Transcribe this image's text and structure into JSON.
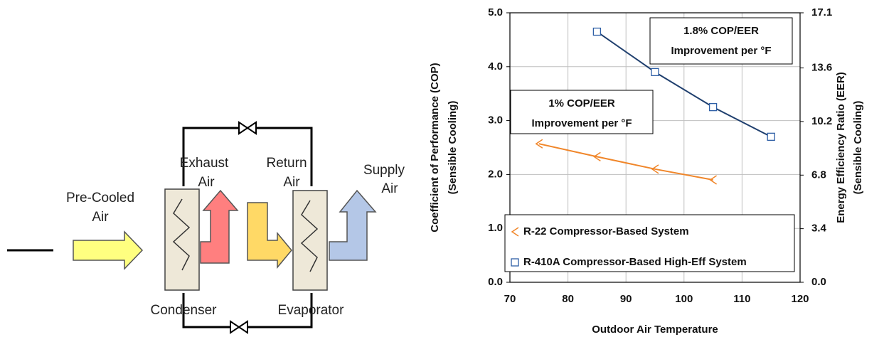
{
  "diagram": {
    "pre_cooled": [
      "Pre-Cooled",
      "Air"
    ],
    "exhaust": [
      "Exhaust",
      "Air"
    ],
    "return": [
      "Return",
      "Air"
    ],
    "supply": [
      "Supply",
      "Air"
    ],
    "condenser": "Condenser",
    "evaporator": "Evaporator"
  },
  "chart_data": {
    "type": "line",
    "x_label": "Outdoor Air Temperature",
    "y_label": [
      "Coefficient of Performance (COP)",
      "(Sensible Cooling)"
    ],
    "y2_label": [
      "Energy Efficiency Ratio (EER)",
      "(Sensible Cooling)"
    ],
    "xlim": [
      70,
      120
    ],
    "xticks": [
      70,
      80,
      90,
      100,
      110,
      120
    ],
    "ylim": [
      0,
      5
    ],
    "yticks": [
      {
        "value": 0,
        "label": "0.0"
      },
      {
        "value": 1,
        "label": "1.0"
      },
      {
        "value": 2,
        "label": "2.0"
      },
      {
        "value": 3,
        "label": "3.0"
      },
      {
        "value": 4,
        "label": "4.0"
      },
      {
        "value": 5,
        "label": "5.0"
      }
    ],
    "y2lim": [
      0,
      17.1
    ],
    "y2ticks": [
      {
        "value": 0,
        "label": "0.0"
      },
      3.4,
      6.8,
      10.2,
      13.6,
      17.1
    ],
    "grid": true,
    "legend": "lower left",
    "series": [
      {
        "name": "R-22 Compressor-Based System",
        "color": "#f0862a",
        "x": [
          75,
          85,
          95,
          105
        ],
        "values": [
          2.57,
          2.33,
          2.1,
          1.9
        ]
      },
      {
        "name": "R-410A Compressor-Based High-Eff System",
        "color": "#1f3f6e",
        "x": [
          85,
          95,
          105,
          115
        ],
        "values": [
          4.65,
          3.9,
          3.25,
          2.7
        ]
      }
    ],
    "annotations": [
      [
        "1.8% COP/EER",
        "Improvement per °F"
      ],
      [
        "1% COP/EER",
        "Improvement per °F"
      ]
    ]
  }
}
